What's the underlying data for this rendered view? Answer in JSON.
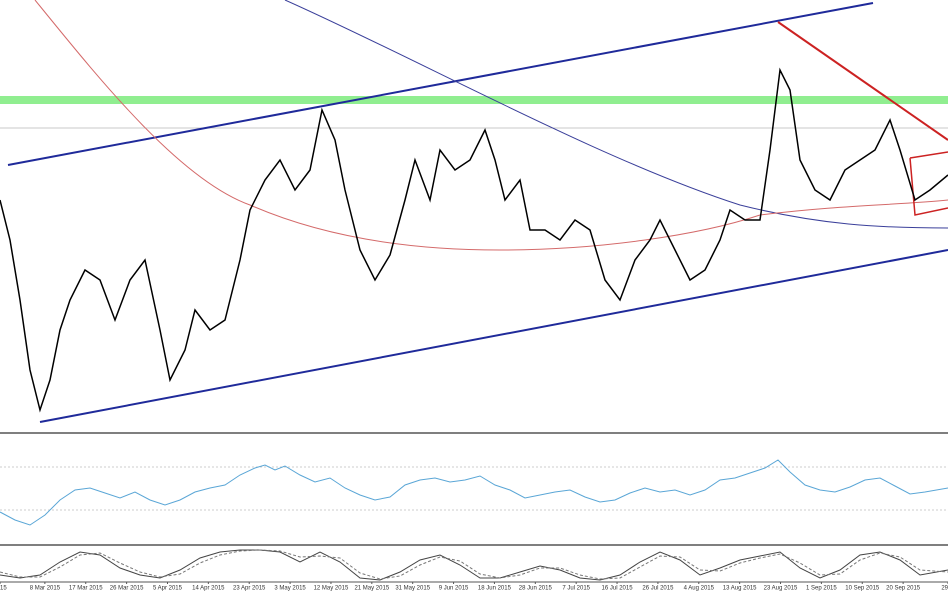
{
  "x_axis": {
    "labels": [
      "15",
      "8 Mar 2015",
      "17 Mar 2015",
      "26 Mar 2015",
      "5 Apr 2015",
      "14 Apr 2015",
      "23 Apr 2015",
      "3 May 2015",
      "12 May 2015",
      "21 May 2015",
      "31 May 2015",
      "9 Jun 2015",
      "18 Jun 2015",
      "28 Jun 2015",
      "7 Jul 2015",
      "16 Jul 2015",
      "26 Jul 2015",
      "4 Aug 2015",
      "13 Aug 2015",
      "23 Aug 2015",
      "1 Sep 2015",
      "10 Sep 2015",
      "20 Sep 2015",
      "29"
    ]
  }
}
